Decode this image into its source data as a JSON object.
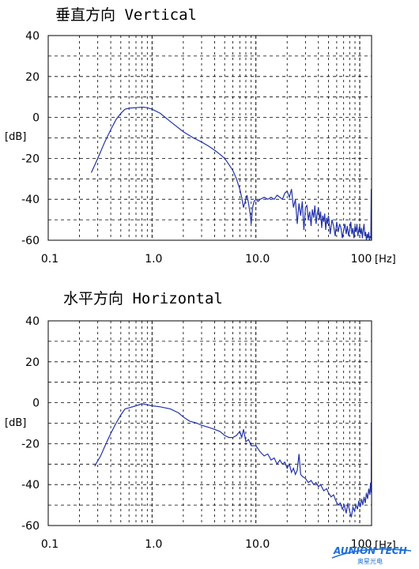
{
  "colors": {
    "line": "#2233aa",
    "grid": "#000000",
    "logo": "#1d6fd6"
  },
  "logo": {
    "main": "AUNION TECH",
    "sub": "奥星光电"
  },
  "chart_data": [
    {
      "type": "line",
      "title": "垂直方向  Vertical",
      "ylabel": "[dB]",
      "xunit": "[Hz]",
      "xscale": "log",
      "xlim": [
        0.1,
        130
      ],
      "ylim": [
        -60,
        40
      ],
      "yticks": [
        40,
        20,
        0,
        -20,
        -40,
        -60
      ],
      "xtick_values": [
        0.1,
        1,
        10,
        100
      ],
      "xtick_labels": [
        "0.1",
        "1.0",
        "10.0",
        "100"
      ],
      "grid": true,
      "series": [
        {
          "points": [
            [
              0.26,
              -27
            ],
            [
              0.3,
              -20
            ],
            [
              0.35,
              -12
            ],
            [
              0.4,
              -6
            ],
            [
              0.45,
              -1
            ],
            [
              0.5,
              2
            ],
            [
              0.55,
              4
            ],
            [
              0.6,
              4.5
            ],
            [
              0.7,
              4.8
            ],
            [
              0.8,
              5
            ],
            [
              0.9,
              4.8
            ],
            [
              1.0,
              4
            ],
            [
              1.2,
              2
            ],
            [
              1.5,
              -2
            ],
            [
              2,
              -7
            ],
            [
              2.5,
              -10
            ],
            [
              3,
              -12
            ],
            [
              3.5,
              -14
            ],
            [
              4,
              -16
            ],
            [
              4.5,
              -18
            ],
            [
              5,
              -20
            ],
            [
              5.5,
              -23
            ],
            [
              6,
              -26
            ],
            [
              6.5,
              -30
            ],
            [
              7,
              -35
            ],
            [
              7.3,
              -39
            ],
            [
              7.6,
              -44
            ],
            [
              7.9,
              -41
            ],
            [
              8.2,
              -38
            ],
            [
              8.5,
              -42
            ],
            [
              8.8,
              -47
            ],
            [
              9.0,
              -52
            ],
            [
              9.3,
              -44
            ],
            [
              9.6,
              -41
            ],
            [
              10,
              -40
            ],
            [
              10.5,
              -41
            ],
            [
              11,
              -40
            ],
            [
              12,
              -39
            ],
            [
              13,
              -40
            ],
            [
              14,
              -39
            ],
            [
              15,
              -40
            ],
            [
              16,
              -38
            ],
            [
              17,
              -39
            ],
            [
              18,
              -40
            ],
            [
              19,
              -37
            ],
            [
              20,
              -36
            ],
            [
              21,
              -39
            ],
            [
              22,
              -35
            ],
            [
              23,
              -44
            ],
            [
              24,
              -40
            ],
            [
              25,
              -52
            ],
            [
              26,
              -42
            ],
            [
              27,
              -48
            ],
            [
              28,
              -41
            ],
            [
              29,
              -55
            ],
            [
              30,
              -44
            ],
            [
              31,
              -43
            ],
            [
              32,
              -50
            ],
            [
              33,
              -46
            ],
            [
              34,
              -53
            ],
            [
              35,
              -45
            ],
            [
              36,
              -49
            ],
            [
              37,
              -43
            ],
            [
              38,
              -52
            ],
            [
              39,
              -47
            ],
            [
              40,
              -44
            ],
            [
              41,
              -50
            ],
            [
              42,
              -46
            ],
            [
              43,
              -54
            ],
            [
              44,
              -48
            ],
            [
              45,
              -51
            ],
            [
              46,
              -47
            ],
            [
              47,
              -55
            ],
            [
              48,
              -49
            ],
            [
              49,
              -52
            ],
            [
              50,
              -48
            ],
            [
              52,
              -57
            ],
            [
              54,
              -50
            ],
            [
              56,
              -53
            ],
            [
              58,
              -58
            ],
            [
              60,
              -51
            ],
            [
              62,
              -56
            ],
            [
              64,
              -52
            ],
            [
              66,
              -54
            ],
            [
              68,
              -59
            ],
            [
              70,
              -55
            ],
            [
              72,
              -52
            ],
            [
              74,
              -57
            ],
            [
              76,
              -53
            ],
            [
              78,
              -58
            ],
            [
              80,
              -55
            ],
            [
              82,
              -51
            ],
            [
              84,
              -57
            ],
            [
              86,
              -54
            ],
            [
              88,
              -59
            ],
            [
              90,
              -53
            ],
            [
              92,
              -56
            ],
            [
              94,
              -52
            ],
            [
              96,
              -58
            ],
            [
              98,
              -55
            ],
            [
              100,
              -53
            ],
            [
              102,
              -57
            ],
            [
              104,
              -54
            ],
            [
              106,
              -59
            ],
            [
              108,
              -55
            ],
            [
              110,
              -52
            ],
            [
              112,
              -58
            ],
            [
              114,
              -56
            ],
            [
              116,
              -60
            ],
            [
              118,
              -57
            ],
            [
              120,
              -59
            ],
            [
              122,
              -56
            ],
            [
              124,
              -60
            ],
            [
              126,
              -58
            ],
            [
              128,
              -59
            ],
            [
              129,
              -35
            ],
            [
              129.5,
              -60
            ]
          ]
        }
      ]
    },
    {
      "type": "line",
      "title": "水平方向  Horizontal",
      "ylabel": "[dB]",
      "xunit": "[Hz]",
      "xscale": "log",
      "xlim": [
        0.1,
        130
      ],
      "ylim": [
        -60,
        40
      ],
      "yticks": [
        40,
        20,
        0,
        -20,
        -40,
        -60
      ],
      "xtick_values": [
        0.1,
        1,
        10,
        100
      ],
      "xtick_labels": [
        "0.1",
        "1.0",
        "10.0",
        "100"
      ],
      "grid": true,
      "series": [
        {
          "points": [
            [
              0.28,
              -31
            ],
            [
              0.32,
              -26
            ],
            [
              0.36,
              -20
            ],
            [
              0.4,
              -15
            ],
            [
              0.45,
              -10
            ],
            [
              0.5,
              -6
            ],
            [
              0.55,
              -3
            ],
            [
              0.6,
              -2.5
            ],
            [
              0.7,
              -1.5
            ],
            [
              0.8,
              -0.5
            ],
            [
              0.9,
              -1
            ],
            [
              1.0,
              -1.5
            ],
            [
              1.2,
              -2
            ],
            [
              1.5,
              -3
            ],
            [
              1.8,
              -5
            ],
            [
              2.0,
              -7
            ],
            [
              2.3,
              -9
            ],
            [
              2.7,
              -10
            ],
            [
              3.0,
              -11
            ],
            [
              3.5,
              -12
            ],
            [
              4,
              -13
            ],
            [
              4.5,
              -14
            ],
            [
              5,
              -16
            ],
            [
              5.5,
              -17
            ],
            [
              6,
              -17
            ],
            [
              6.5,
              -16
            ],
            [
              7,
              -14
            ],
            [
              7.3,
              -17
            ],
            [
              7.6,
              -13
            ],
            [
              8,
              -19
            ],
            [
              8.5,
              -18
            ],
            [
              9,
              -21
            ],
            [
              10,
              -21
            ],
            [
              11,
              -24
            ],
            [
              12,
              -26
            ],
            [
              13,
              -25
            ],
            [
              14,
              -28
            ],
            [
              15,
              -27
            ],
            [
              16,
              -30
            ],
            [
              17,
              -28
            ],
            [
              18,
              -30
            ],
            [
              19,
              -29
            ],
            [
              20,
              -32
            ],
            [
              21,
              -30
            ],
            [
              22,
              -34
            ],
            [
              23,
              -32
            ],
            [
              24,
              -35
            ],
            [
              25,
              -33
            ],
            [
              26,
              -25
            ],
            [
              27,
              -35
            ],
            [
              28,
              -36
            ],
            [
              30,
              -37
            ],
            [
              32,
              -39
            ],
            [
              34,
              -38
            ],
            [
              36,
              -40
            ],
            [
              38,
              -39
            ],
            [
              40,
              -41
            ],
            [
              42,
              -40
            ],
            [
              45,
              -43
            ],
            [
              48,
              -42
            ],
            [
              50,
              -44
            ],
            [
              53,
              -46
            ],
            [
              56,
              -45
            ],
            [
              59,
              -48
            ],
            [
              62,
              -50
            ],
            [
              65,
              -49
            ],
            [
              68,
              -52
            ],
            [
              71,
              -50
            ],
            [
              74,
              -54
            ],
            [
              77,
              -49
            ],
            [
              80,
              -53
            ],
            [
              83,
              -56
            ],
            [
              86,
              -51
            ],
            [
              89,
              -53
            ],
            [
              92,
              -50
            ],
            [
              95,
              -52
            ],
            [
              98,
              -48
            ],
            [
              101,
              -51
            ],
            [
              104,
              -47
            ],
            [
              107,
              -50
            ],
            [
              110,
              -46
            ],
            [
              113,
              -49
            ],
            [
              116,
              -44
            ],
            [
              119,
              -47
            ],
            [
              122,
              -42
            ],
            [
              125,
              -45
            ],
            [
              127,
              -39
            ],
            [
              129,
              -44
            ],
            [
              129.5,
              -10
            ]
          ]
        }
      ]
    }
  ]
}
